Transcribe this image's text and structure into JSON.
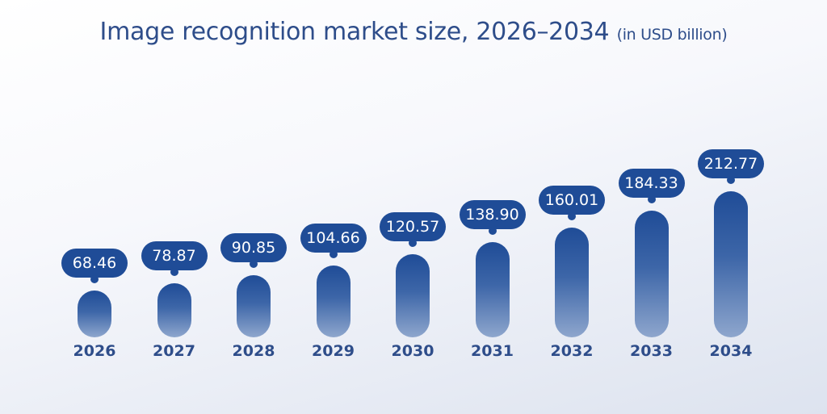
{
  "header": {
    "title": "Image recognition market size, 2026–2034",
    "subtitle": "(in USD billion)"
  },
  "colors": {
    "bar_top": "#1f4c97",
    "bar_bottom": "#8ea6cd",
    "bubble": "#1f4c97",
    "text": "#2e4d8a"
  },
  "labels": {
    "values": [
      "68.46",
      "78.87",
      "90.85",
      "104.66",
      "120.57",
      "138.90",
      "160.01",
      "184.33",
      "212.77"
    ],
    "years": [
      "2026",
      "2027",
      "2028",
      "2029",
      "2030",
      "2031",
      "2032",
      "2033",
      "2034"
    ]
  },
  "chart_data": {
    "type": "bar",
    "title": "Image recognition market size, 2026–2034 (in USD billion)",
    "categories": [
      "2026",
      "2027",
      "2028",
      "2029",
      "2030",
      "2031",
      "2032",
      "2033",
      "2034"
    ],
    "values": [
      68.46,
      78.87,
      90.85,
      104.66,
      120.57,
      138.9,
      160.01,
      184.33,
      212.77
    ],
    "xlabel": "",
    "ylabel": "USD billion",
    "grid": false,
    "legend": "none",
    "data_labels": true
  }
}
